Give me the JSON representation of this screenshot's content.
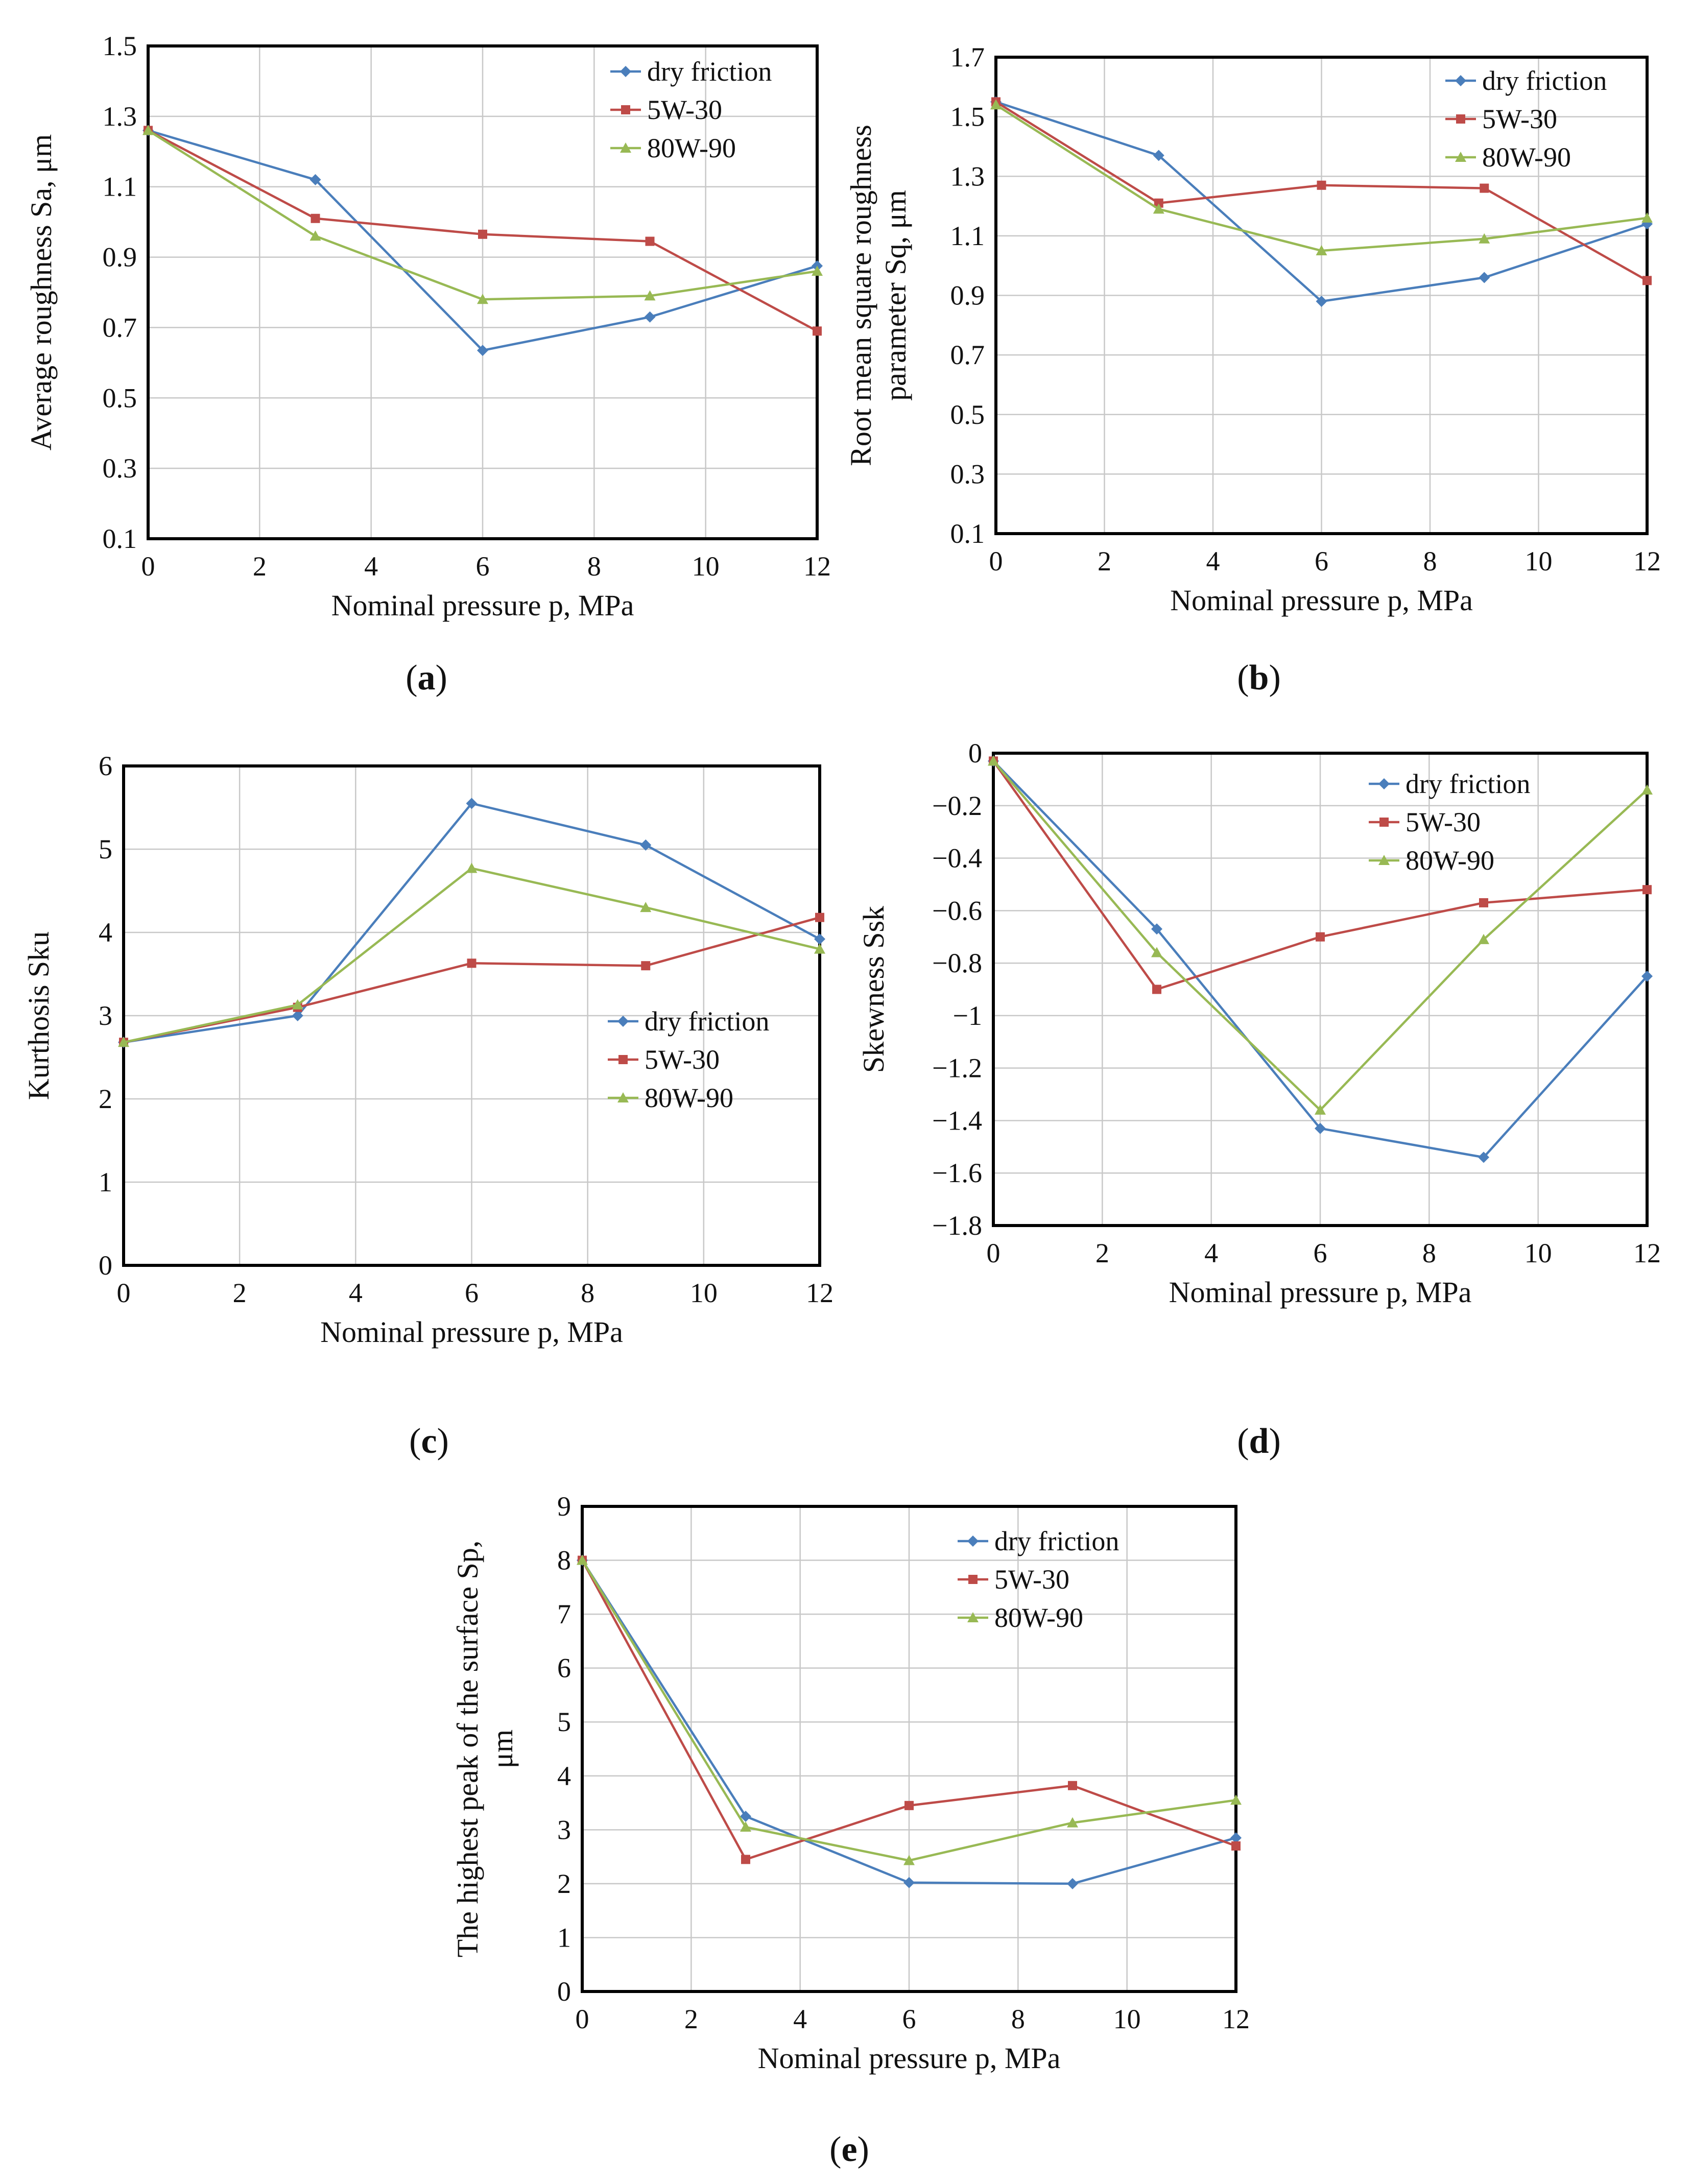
{
  "colors": {
    "dry friction": "#4a7ebb",
    "5W-30": "#be4b48",
    "80W-90": "#98b954"
  },
  "chart_data": [
    {
      "type": "line",
      "panel": "a",
      "caption": "(a)",
      "caption_letter": "a",
      "title": "",
      "xlabel": "Nominal pressure p, MPa",
      "ylabel": [
        "Average roughness Sa, μm"
      ],
      "xlim": [
        0,
        12
      ],
      "ylim": [
        0.1,
        1.5
      ],
      "xticks": [
        0,
        2,
        4,
        6,
        8,
        10,
        12
      ],
      "xtick_labels": [
        "0",
        "2",
        "4",
        "6",
        "8",
        "10",
        "12"
      ],
      "yticks": [
        0.1,
        0.3,
        0.5,
        0.7,
        0.9,
        1.1,
        1.3,
        1.5
      ],
      "ytick_labels": [
        "0.1",
        "0.3",
        "0.5",
        "0.7",
        "0.9",
        "1.1",
        "1.3",
        "1.5"
      ],
      "grid": true,
      "legend_position": "top-right",
      "x": [
        0,
        3,
        6,
        9,
        12
      ],
      "series": [
        {
          "name": "dry friction",
          "marker": "diamond",
          "values": [
            1.26,
            1.12,
            0.635,
            0.73,
            0.875
          ]
        },
        {
          "name": "5W-30",
          "marker": "square",
          "values": [
            1.26,
            1.01,
            0.965,
            0.945,
            0.69
          ]
        },
        {
          "name": "80W-90",
          "marker": "triangle",
          "values": [
            1.26,
            0.96,
            0.78,
            0.79,
            0.86
          ]
        }
      ]
    },
    {
      "type": "line",
      "panel": "b",
      "caption": "(b)",
      "caption_letter": "b",
      "title": "",
      "xlabel": "Nominal pressure p, MPa",
      "ylabel": [
        "Root mean square roughness",
        "parameter Sq, μm"
      ],
      "xlim": [
        0,
        12
      ],
      "ylim": [
        0.1,
        1.7
      ],
      "xticks": [
        0,
        2,
        4,
        6,
        8,
        10,
        12
      ],
      "xtick_labels": [
        "0",
        "2",
        "4",
        "6",
        "8",
        "10",
        "12"
      ],
      "yticks": [
        0.1,
        0.3,
        0.5,
        0.7,
        0.9,
        1.1,
        1.3,
        1.5,
        1.7
      ],
      "ytick_labels": [
        "0.1",
        "0.3",
        "0.5",
        "0.7",
        "0.9",
        "1.1",
        "1.3",
        "1.5",
        "1.7"
      ],
      "grid": true,
      "legend_position": "top-right",
      "x": [
        0,
        3,
        6,
        9,
        12
      ],
      "series": [
        {
          "name": "dry friction",
          "marker": "diamond",
          "values": [
            1.55,
            1.37,
            0.88,
            0.96,
            1.14
          ]
        },
        {
          "name": "5W-30",
          "marker": "square",
          "values": [
            1.55,
            1.21,
            1.27,
            1.26,
            0.95
          ]
        },
        {
          "name": "80W-90",
          "marker": "triangle",
          "values": [
            1.54,
            1.19,
            1.05,
            1.09,
            1.16
          ]
        }
      ]
    },
    {
      "type": "line",
      "panel": "c",
      "caption": "(c)",
      "caption_letter": "c",
      "title": "",
      "xlabel": "Nominal pressure p, MPa",
      "ylabel": [
        "Kurthosis Sku"
      ],
      "xlim": [
        0,
        12
      ],
      "ylim": [
        0,
        6
      ],
      "xticks": [
        0,
        2,
        4,
        6,
        8,
        10,
        12
      ],
      "xtick_labels": [
        "0",
        "2",
        "4",
        "6",
        "8",
        "10",
        "12"
      ],
      "yticks": [
        0,
        1,
        2,
        3,
        4,
        5,
        6
      ],
      "ytick_labels": [
        "0",
        "1",
        "2",
        "3",
        "4",
        "5",
        "6"
      ],
      "grid": true,
      "legend_position": "center-right",
      "x": [
        0,
        3,
        6,
        9,
        12
      ],
      "series": [
        {
          "name": "dry friction",
          "marker": "diamond",
          "values": [
            2.68,
            3.0,
            5.55,
            5.05,
            3.92
          ]
        },
        {
          "name": "5W-30",
          "marker": "square",
          "values": [
            2.68,
            3.1,
            3.63,
            3.6,
            4.18
          ]
        },
        {
          "name": "80W-90",
          "marker": "triangle",
          "values": [
            2.68,
            3.13,
            4.77,
            4.3,
            3.8
          ]
        }
      ]
    },
    {
      "type": "line",
      "panel": "d",
      "caption": "(d)",
      "caption_letter": "d",
      "title": "",
      "xlabel": "Nominal pressure p, MPa",
      "ylabel": [
        "Skewness Ssk"
      ],
      "xlim": [
        0,
        12
      ],
      "ylim": [
        -1.8,
        0
      ],
      "xticks": [
        0,
        2,
        4,
        6,
        8,
        10,
        12
      ],
      "xtick_labels": [
        "0",
        "2",
        "4",
        "6",
        "8",
        "10",
        "12"
      ],
      "yticks": [
        0,
        -0.2,
        -0.4,
        -0.6,
        -0.8,
        -1,
        -1.2,
        -1.4,
        -1.6,
        -1.8
      ],
      "ytick_labels": [
        "0",
        "−0.2",
        "−0.4",
        "−0.6",
        "−0.8",
        "−1",
        "−1.2",
        "−1.4",
        "−1.6",
        "−1.8"
      ],
      "grid": true,
      "legend_position": "top-right",
      "x": [
        0,
        3,
        6,
        9,
        12
      ],
      "series": [
        {
          "name": "dry friction",
          "marker": "diamond",
          "values": [
            -0.03,
            -0.67,
            -1.43,
            -1.54,
            -0.85
          ]
        },
        {
          "name": "5W-30",
          "marker": "square",
          "values": [
            -0.03,
            -0.9,
            -0.7,
            -0.57,
            -0.52
          ]
        },
        {
          "name": "80W-90",
          "marker": "triangle",
          "values": [
            -0.03,
            -0.76,
            -1.36,
            -0.71,
            -0.14
          ]
        }
      ]
    },
    {
      "type": "line",
      "panel": "e",
      "caption": "(e)",
      "caption_letter": "e",
      "title": "",
      "xlabel": "Nominal pressure p, MPa",
      "ylabel": [
        "The highest peak of the surface Sp,",
        "μm"
      ],
      "xlim": [
        0,
        12
      ],
      "ylim": [
        0,
        9
      ],
      "xticks": [
        0,
        2,
        4,
        6,
        8,
        10,
        12
      ],
      "xtick_labels": [
        "0",
        "2",
        "4",
        "6",
        "8",
        "10",
        "12"
      ],
      "yticks": [
        0,
        1,
        2,
        3,
        4,
        5,
        6,
        7,
        8,
        9
      ],
      "ytick_labels": [
        "0",
        "1",
        "2",
        "3",
        "4",
        "5",
        "6",
        "7",
        "8",
        "9"
      ],
      "grid": true,
      "legend_position": "top-right",
      "x": [
        0,
        3,
        6,
        9,
        12
      ],
      "series": [
        {
          "name": "dry friction",
          "marker": "diamond",
          "values": [
            8.0,
            3.25,
            2.02,
            2.0,
            2.85
          ]
        },
        {
          "name": "5W-30",
          "marker": "square",
          "values": [
            8.0,
            2.45,
            3.45,
            3.82,
            2.7
          ]
        },
        {
          "name": "80W-90",
          "marker": "triangle",
          "values": [
            8.0,
            3.05,
            2.43,
            3.13,
            3.55
          ]
        }
      ]
    }
  ]
}
